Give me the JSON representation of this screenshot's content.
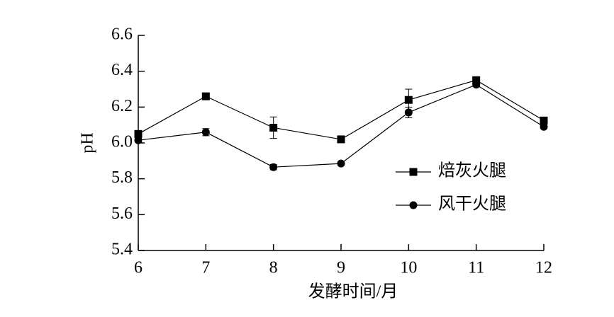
{
  "chart_data": {
    "type": "line",
    "x_label": "发酵时间/月",
    "y_label": "pH",
    "x": [
      6,
      7,
      8,
      9,
      10,
      11,
      12
    ],
    "series": [
      {
        "name": "焙灰火腿",
        "color": "#000000",
        "marker": "square",
        "values": [
          6.05,
          6.26,
          6.085,
          6.02,
          6.24,
          6.35,
          6.125
        ],
        "errors": [
          0.01,
          0.01,
          0.06,
          0.01,
          0.06,
          0.01,
          0.01
        ]
      },
      {
        "name": "风干火腿",
        "color": "#000000",
        "marker": "circle",
        "values": [
          6.015,
          6.06,
          5.865,
          5.885,
          6.17,
          6.325,
          6.09
        ],
        "errors": [
          0.01,
          0.02,
          0.015,
          0.01,
          0.03,
          0.01,
          0.01
        ]
      }
    ],
    "xlim": [
      6,
      12
    ],
    "xticks": [
      6,
      7,
      8,
      9,
      10,
      11,
      12
    ],
    "ylim": [
      5.4,
      6.6
    ],
    "yticks": [
      5.4,
      5.6,
      5.8,
      {
        "value": 6,
        "label": "6.0"
      },
      6.2,
      6.4,
      6.6
    ],
    "grid": false,
    "legend": "right"
  }
}
